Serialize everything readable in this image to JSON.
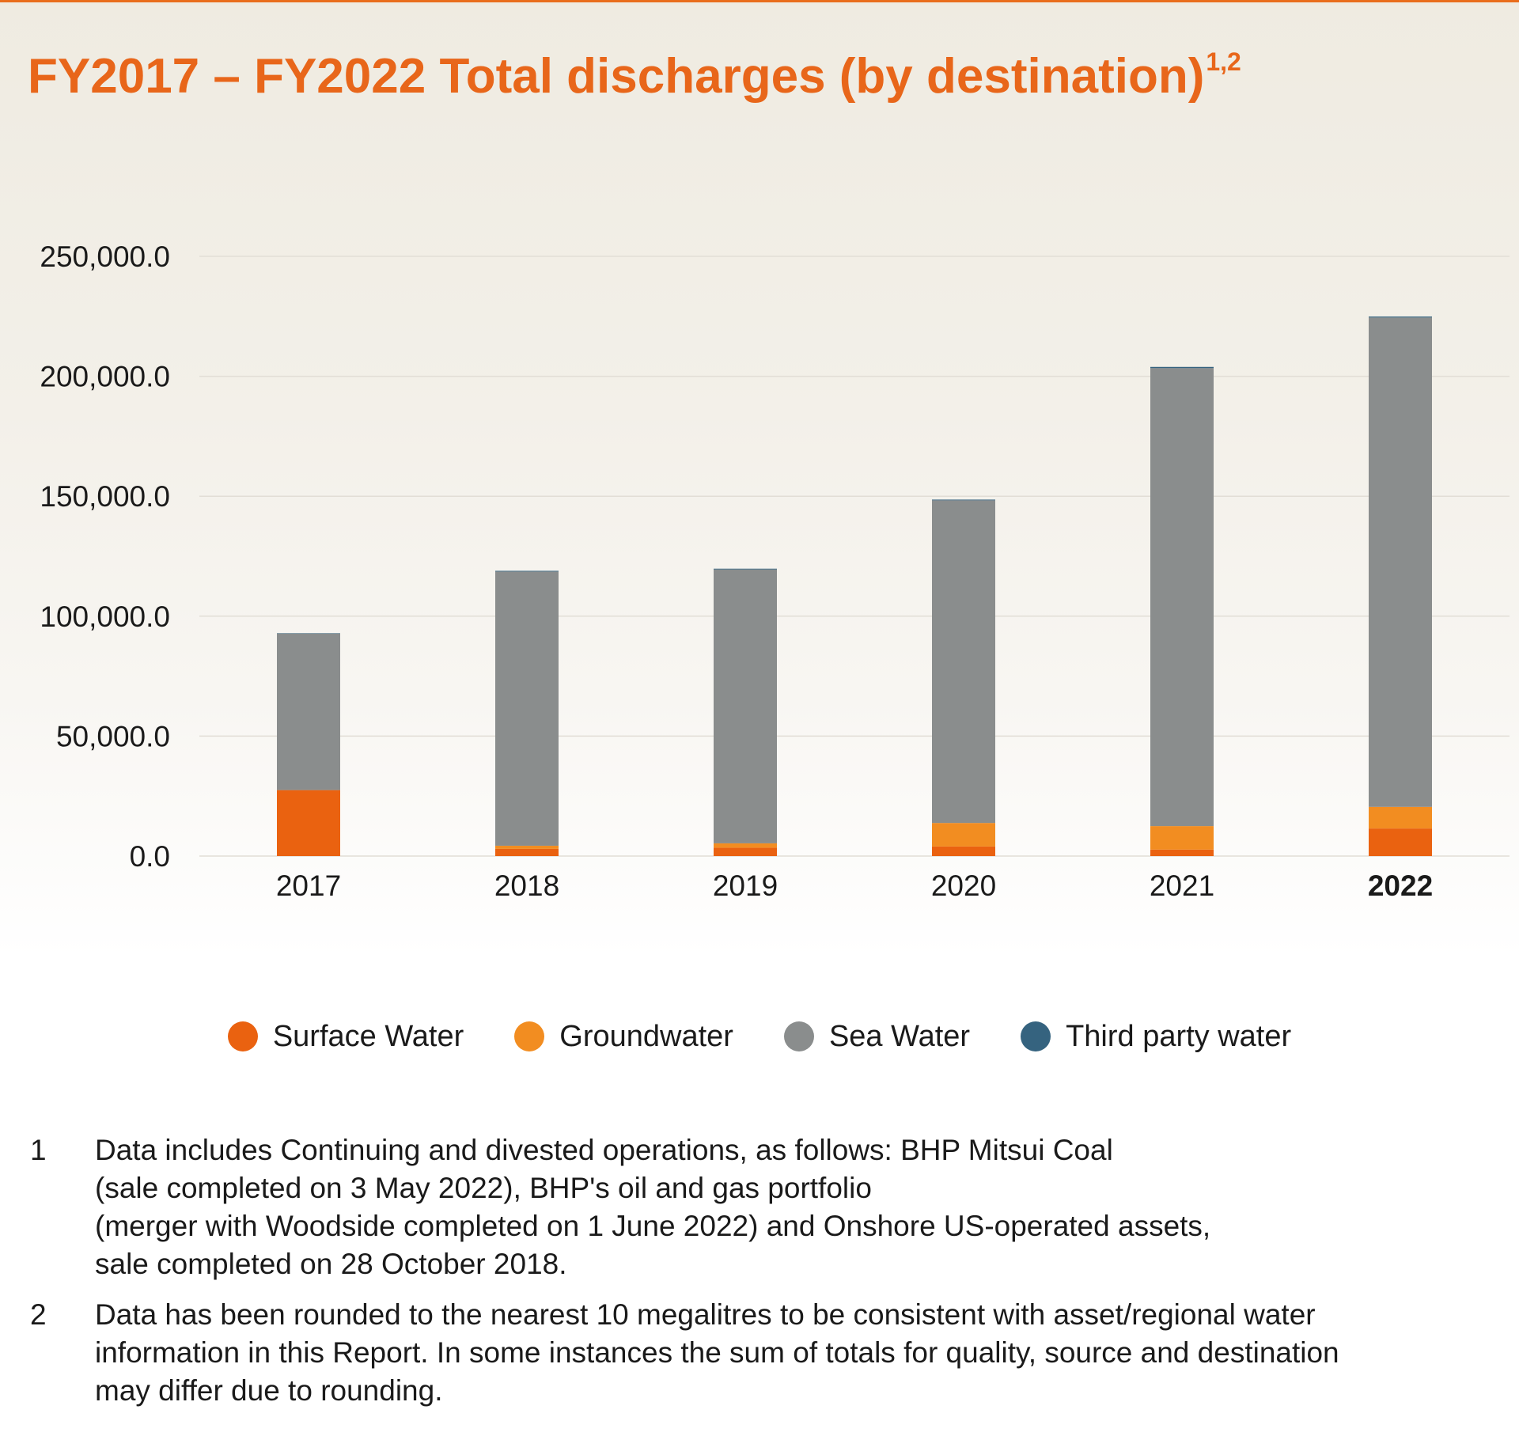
{
  "title": {
    "text": "FY2017 – FY2022 Total discharges (by destination)",
    "footnote_refs": "1,2"
  },
  "colors": {
    "title": "#e8661a",
    "surface_water": "#ea6210",
    "groundwater": "#f28d21",
    "sea_water": "#8a8d8d",
    "third_party_water": "#35637f",
    "gridline": "#e2ded6"
  },
  "chart_data": {
    "type": "bar",
    "stacked": true,
    "categories": [
      "2017",
      "2018",
      "2019",
      "2020",
      "2021",
      "2022"
    ],
    "highlighted_category": "2022",
    "series": [
      {
        "name": "Surface Water",
        "color": "#ea6210",
        "values": [
          27500,
          3000,
          3500,
          4000,
          2700,
          11500
        ]
      },
      {
        "name": "Groundwater",
        "color": "#f28d21",
        "values": [
          0,
          1300,
          1800,
          9800,
          9800,
          9000
        ]
      },
      {
        "name": "Sea Water",
        "color": "#8a8d8d",
        "values": [
          65300,
          114300,
          114200,
          134500,
          190900,
          204000
        ]
      },
      {
        "name": "Third party water",
        "color": "#35637f",
        "values": [
          100,
          300,
          300,
          300,
          500,
          400
        ]
      }
    ],
    "y_ticks": [
      "0.0",
      "50,000.0",
      "100,000.0",
      "150,000.0",
      "200,000.0",
      "250,000.0"
    ],
    "ylim": [
      0,
      250000
    ],
    "grid": true,
    "legend_position": "bottom"
  },
  "footnotes": [
    {
      "number": "1",
      "lines": [
        "Data includes Continuing and divested operations, as follows: BHP Mitsui Coal",
        "(sale completed on 3 May 2022), BHP's oil and gas portfolio",
        "(merger with Woodside completed on 1 June 2022) and Onshore US-operated assets,",
        "sale completed on 28 October 2018."
      ]
    },
    {
      "number": "2",
      "lines": [
        "Data has been rounded to the nearest 10 megalitres to be consistent with asset/regional water",
        "information in this Report. In some instances the sum of totals for quality, source and destination",
        "may differ due to rounding."
      ]
    }
  ]
}
